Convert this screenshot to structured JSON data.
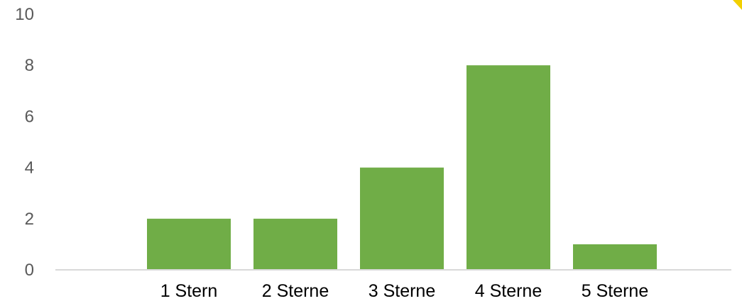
{
  "chart_data": {
    "type": "bar",
    "categories": [
      "1 Stern",
      "2 Sterne",
      "3 Sterne",
      "4 Sterne",
      "5 Sterne"
    ],
    "values": [
      2,
      2,
      4,
      8,
      1
    ],
    "ylim": [
      0,
      10
    ],
    "yticks": [
      0,
      2,
      4,
      6,
      8,
      10
    ],
    "grid": false,
    "bar_color": "#70AD47",
    "axis_color": "#D9D9D9"
  }
}
